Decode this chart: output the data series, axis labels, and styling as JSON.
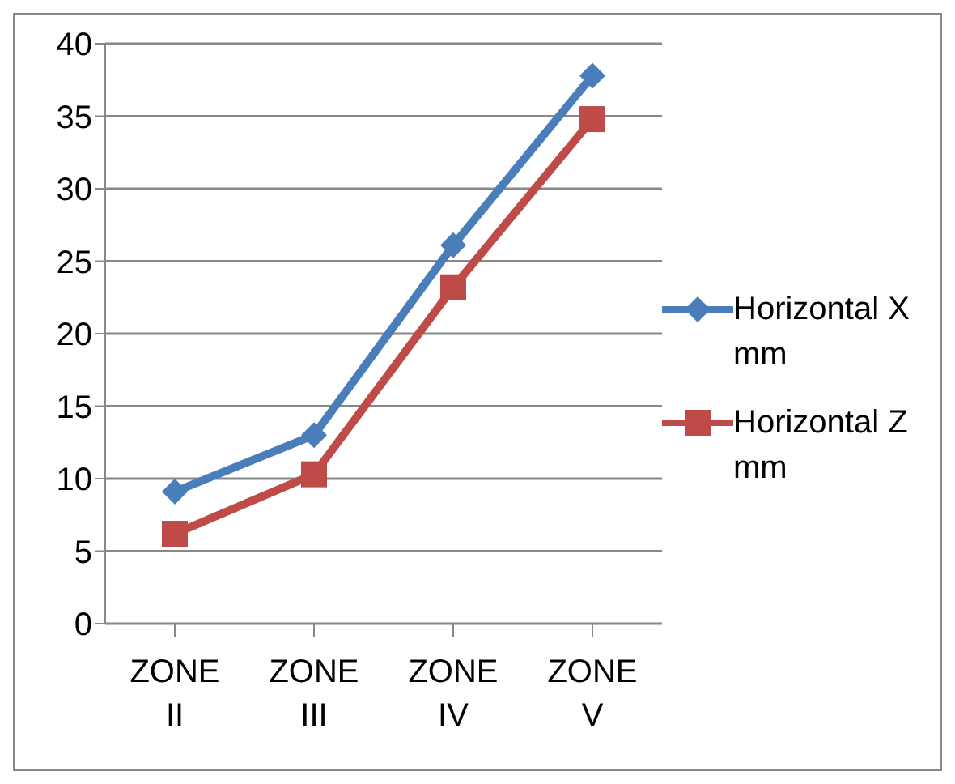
{
  "chart_data": {
    "type": "line",
    "categories": [
      "ZONE II",
      "ZONE III",
      "ZONE IV",
      "ZONE V"
    ],
    "series": [
      {
        "name": "Horizontal X mm",
        "color": "#4a7ebb",
        "values": [
          9.1,
          13.0,
          26.1,
          37.8
        ],
        "marker": "diamond"
      },
      {
        "name": "Horizontal Z mm",
        "color": "#be4b48",
        "values": [
          6.2,
          10.3,
          23.2,
          34.8
        ],
        "marker": "square"
      }
    ],
    "ylim": [
      0,
      40
    ],
    "yticks": [
      0,
      5,
      10,
      15,
      20,
      25,
      30,
      35,
      40
    ],
    "grid": "y",
    "legend": "right",
    "line_style": "solid"
  }
}
